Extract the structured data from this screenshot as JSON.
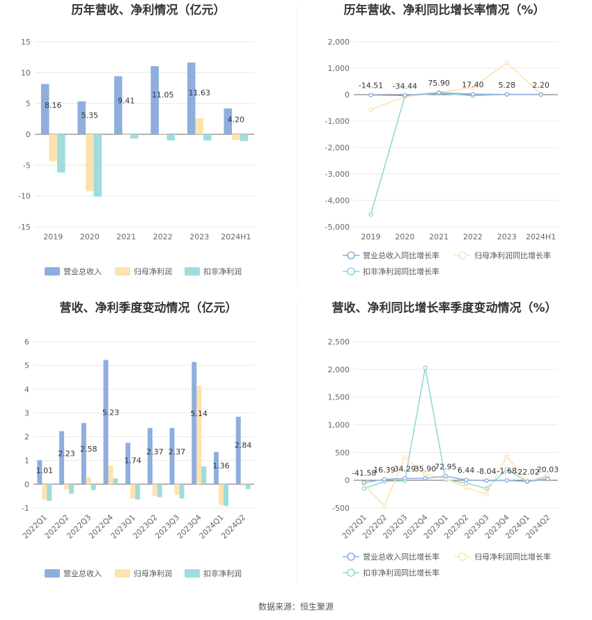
{
  "source": "数据来源：恒生聚源",
  "colors": {
    "rev": "#8eaedd",
    "np": "#fde3b0",
    "nnp": "#9fdcdc",
    "revLine": "#8eaedd",
    "npLine": "#fde3b0",
    "nnpLine": "#8fd8d8"
  },
  "chart_data": [
    {
      "type": "bar",
      "title": "历年营收、净利情况（亿元）",
      "categories": [
        "2019",
        "2020",
        "2021",
        "2022",
        "2023",
        "2024H1"
      ],
      "ylim": [
        -15,
        15
      ],
      "yticks": [
        15,
        10,
        5,
        0,
        -5,
        -10,
        -15
      ],
      "series": [
        {
          "name": "营业总收入",
          "values": [
            8.16,
            5.35,
            9.41,
            11.05,
            11.63,
            4.2
          ],
          "labels": [
            "8.16",
            "5.35",
            "9.41",
            "11.05",
            "11.63",
            "4.20"
          ]
        },
        {
          "name": "归母净利润",
          "values": [
            -4.4,
            -9.2,
            0.0,
            0.15,
            2.6,
            -0.9
          ]
        },
        {
          "name": "扣非净利润",
          "values": [
            -6.2,
            -10.1,
            -0.7,
            -1.0,
            -1.0,
            -1.1
          ]
        }
      ]
    },
    {
      "type": "line",
      "title": "历年营收、净利同比增长率情况（%）",
      "categories": [
        "2019",
        "2020",
        "2021",
        "2022",
        "2023",
        "2024H1"
      ],
      "ylim": [
        -5000,
        2000
      ],
      "yticks": [
        2000,
        1000,
        0,
        -1000,
        -2000,
        -3000,
        -4000,
        -5000
      ],
      "ytick_labels": [
        "2,000",
        "1,000",
        "0",
        "-1,000",
        "-2,000",
        "-3,000",
        "-4,000",
        "-5,000"
      ],
      "series": [
        {
          "name": "营业总收入同比增长率",
          "values": [
            -14.51,
            -34.44,
            75.9,
            17.4,
            5.28,
            2.2
          ],
          "labels": [
            "-14.51",
            "-34.44",
            "75.90",
            "17.40",
            "5.28",
            "2.20"
          ]
        },
        {
          "name": "归母净利润同比增长率",
          "values": [
            -570,
            -80,
            90,
            260,
            1200,
            20
          ]
        },
        {
          "name": "扣非净利润同比增长率",
          "values": [
            -4530,
            -60,
            50,
            -40,
            10,
            10
          ]
        }
      ]
    },
    {
      "type": "bar",
      "title": "营收、净利季度变动情况（亿元）",
      "categories": [
        "2022Q1",
        "2022Q2",
        "2022Q3",
        "2022Q4",
        "2023Q1",
        "2023Q2",
        "2023Q3",
        "2023Q4",
        "2024Q1",
        "2024Q2"
      ],
      "ylim": [
        -1,
        6
      ],
      "yticks": [
        6,
        5,
        4,
        3,
        2,
        1,
        0,
        -1
      ],
      "series": [
        {
          "name": "营业总收入",
          "values": [
            1.01,
            2.23,
            2.58,
            5.23,
            1.74,
            2.37,
            2.37,
            5.14,
            1.36,
            2.84
          ],
          "labels": [
            "1.01",
            "2.23",
            "2.58",
            "5.23",
            "1.74",
            "2.37",
            "2.37",
            "5.14",
            "1.36",
            "2.84"
          ]
        },
        {
          "name": "归母净利润",
          "values": [
            -0.65,
            -0.2,
            0.3,
            0.78,
            -0.6,
            -0.5,
            -0.45,
            4.15,
            -0.88,
            -0.08
          ]
        },
        {
          "name": "扣非净利润",
          "values": [
            -0.7,
            -0.4,
            -0.25,
            0.25,
            -0.65,
            -0.55,
            -0.6,
            0.75,
            -0.92,
            -0.2
          ]
        }
      ]
    },
    {
      "type": "line",
      "title": "营收、净利同比增长率季度变动情况（%）",
      "categories": [
        "2022Q1",
        "2022Q2",
        "2022Q3",
        "2022Q4",
        "2023Q1",
        "2023Q2",
        "2023Q3",
        "2023Q4",
        "2024Q1",
        "2024Q2"
      ],
      "ylim": [
        -500,
        2500
      ],
      "yticks": [
        2500,
        2000,
        1500,
        1000,
        500,
        0,
        -500
      ],
      "ytick_labels": [
        "2,500",
        "2,000",
        "1,500",
        "1,000",
        "500",
        "0",
        "-500"
      ],
      "series": [
        {
          "name": "营业总收入同比增长率",
          "values": [
            -41.58,
            16.39,
            34.29,
            35.9,
            72.95,
            6.44,
            -8.04,
            -1.68,
            -22.02,
            20.03
          ],
          "labels": [
            "-41.58",
            "16.39",
            "34.29",
            "35.90",
            "72.95",
            "6.44",
            "-8.04",
            "-1.68",
            "-22.02",
            "20.03"
          ]
        },
        {
          "name": "归母净利润同比增长率",
          "values": [
            -80,
            -460,
            410,
            110,
            30,
            -130,
            -250,
            430,
            -30,
            100
          ]
        },
        {
          "name": "扣非净利润同比增长率",
          "values": [
            -150,
            -20,
            -10,
            2030,
            10,
            -50,
            -150,
            200,
            -30,
            60
          ]
        }
      ]
    }
  ]
}
